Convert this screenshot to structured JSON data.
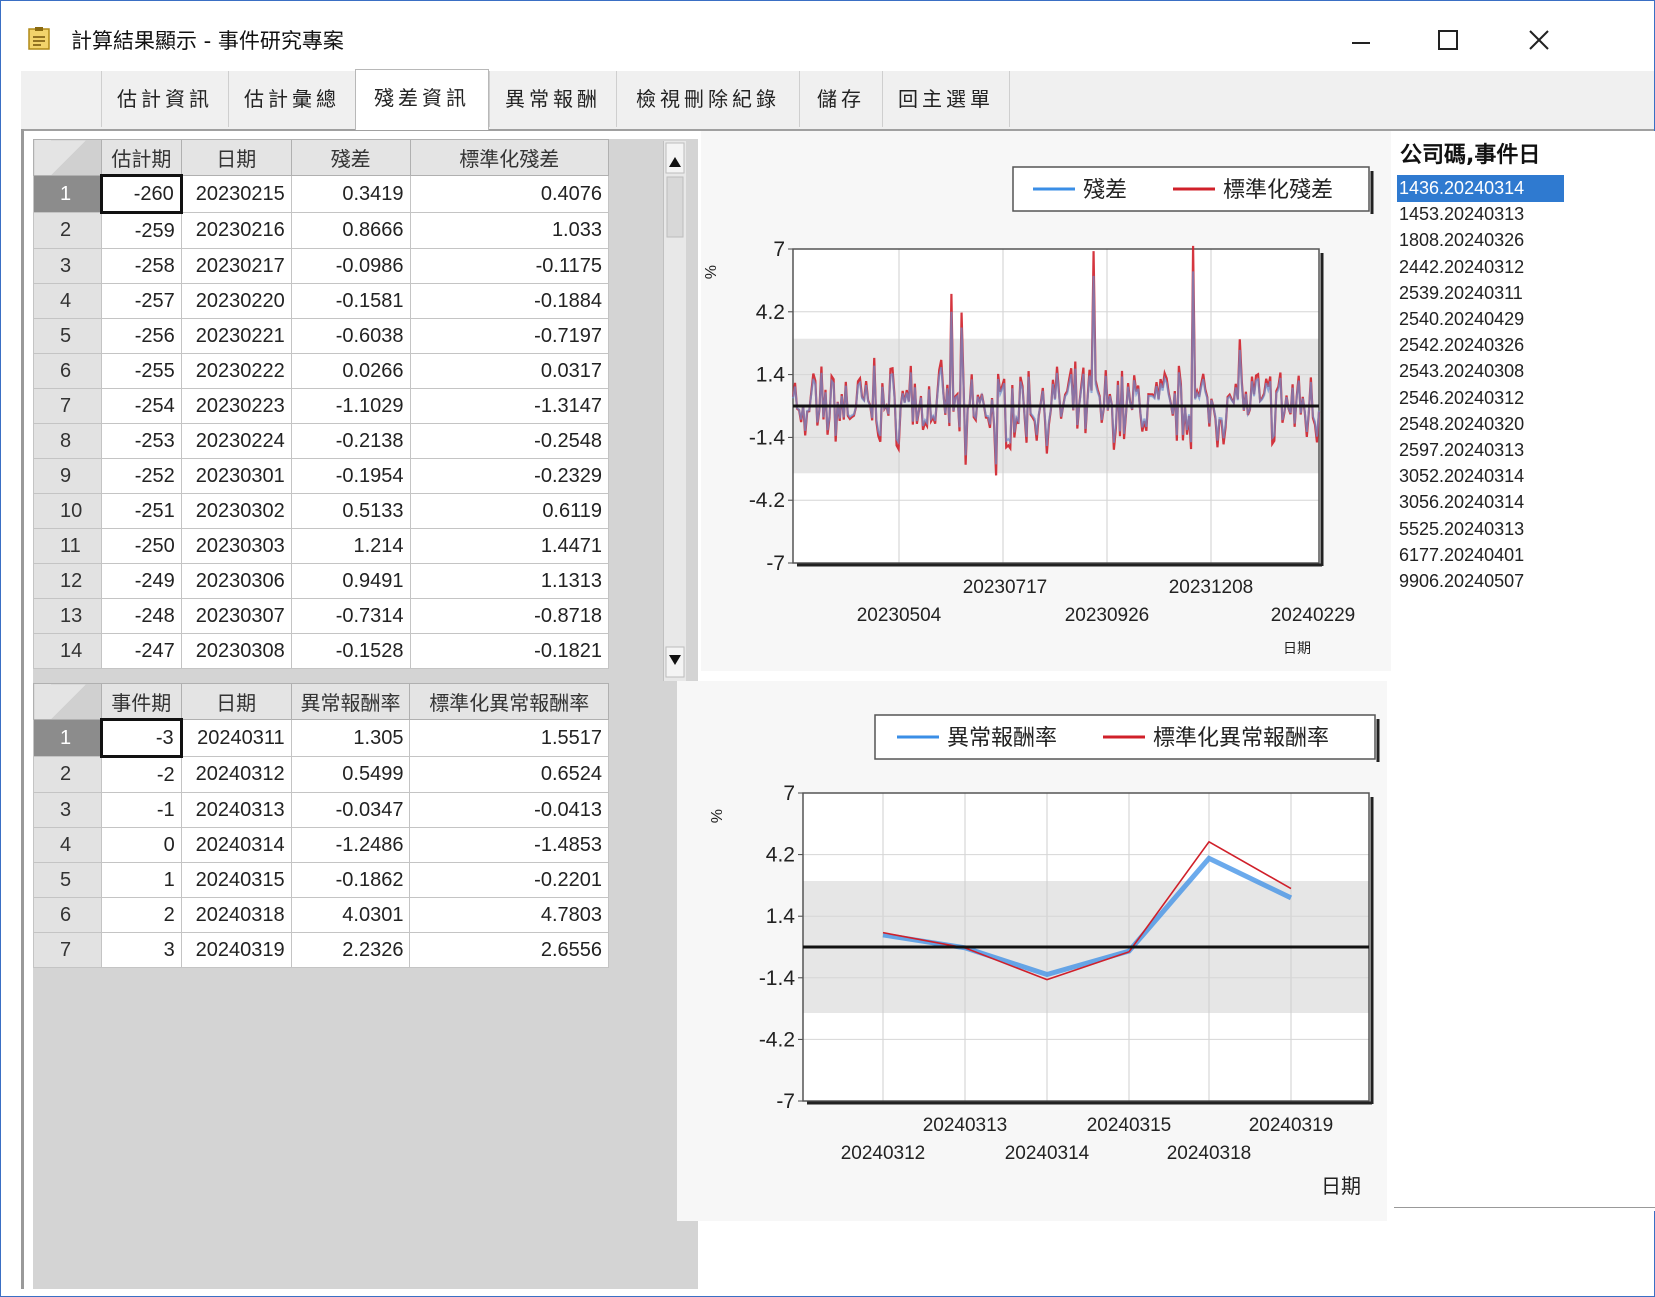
{
  "window": {
    "title": "計算結果顯示 - 事件研究專案",
    "icon": "note-icon",
    "controls": [
      "minimize-icon",
      "maximize-icon",
      "close-icon"
    ]
  },
  "tabs": [
    {
      "label": "估計資訊"
    },
    {
      "label": "估計彙總"
    },
    {
      "label": "殘差資訊",
      "active": true
    },
    {
      "label": "異常報酬"
    },
    {
      "label": "檢視刪除紀錄"
    },
    {
      "label": "儲存"
    },
    {
      "label": "回主選單"
    }
  ],
  "residual_grid": {
    "columns": [
      "估計期",
      "日期",
      "殘差",
      "標準化殘差"
    ],
    "rows": [
      [
        "1",
        "-260",
        "20230215",
        "0.3419",
        "0.4076"
      ],
      [
        "2",
        "-259",
        "20230216",
        "0.8666",
        "1.033"
      ],
      [
        "3",
        "-258",
        "20230217",
        "-0.0986",
        "-0.1175"
      ],
      [
        "4",
        "-257",
        "20230220",
        "-0.1581",
        "-0.1884"
      ],
      [
        "5",
        "-256",
        "20230221",
        "-0.6038",
        "-0.7197"
      ],
      [
        "6",
        "-255",
        "20230222",
        "0.0266",
        "0.0317"
      ],
      [
        "7",
        "-254",
        "20230223",
        "-1.1029",
        "-1.3147"
      ],
      [
        "8",
        "-253",
        "20230224",
        "-0.2138",
        "-0.2548"
      ],
      [
        "9",
        "-252",
        "20230301",
        "-0.1954",
        "-0.2329"
      ],
      [
        "10",
        "-251",
        "20230302",
        "0.5133",
        "0.6119"
      ],
      [
        "11",
        "-250",
        "20230303",
        "1.214",
        "1.4471"
      ],
      [
        "12",
        "-249",
        "20230306",
        "0.9491",
        "1.1313"
      ],
      [
        "13",
        "-248",
        "20230307",
        "-0.7314",
        "-0.8718"
      ],
      [
        "14",
        "-247",
        "20230308",
        "-0.1528",
        "-0.1821"
      ]
    ]
  },
  "abnormal_grid": {
    "columns": [
      "事件期",
      "日期",
      "異常報酬率",
      "標準化異常報酬率"
    ],
    "rows": [
      [
        "1",
        "-3",
        "20240311",
        "1.305",
        "1.5517"
      ],
      [
        "2",
        "-2",
        "20240312",
        "0.5499",
        "0.6524"
      ],
      [
        "3",
        "-1",
        "20240313",
        "-0.0347",
        "-0.0413"
      ],
      [
        "4",
        "0",
        "20240314",
        "-1.2486",
        "-1.4853"
      ],
      [
        "5",
        "1",
        "20240315",
        "-0.1862",
        "-0.2201"
      ],
      [
        "6",
        "2",
        "20240318",
        "4.0301",
        "4.7803"
      ],
      [
        "7",
        "3",
        "20240319",
        "2.2326",
        "2.6556"
      ]
    ]
  },
  "event_list": {
    "header": "公司碼,事件日",
    "selected_index": 0,
    "items": [
      "1436.20240314",
      "1453.20240313",
      "1808.20240326",
      "2442.20240312",
      "2539.20240311",
      "2540.20240429",
      "2542.20240326",
      "2543.20240308",
      "2546.20240312",
      "2548.20240320",
      "2597.20240313",
      "3052.20240314",
      "3056.20240314",
      "5525.20240313",
      "6177.20240401",
      "9906.20240507"
    ]
  },
  "chart_data": [
    {
      "type": "line",
      "ylabel": "%",
      "xlabel": "日期",
      "ylim": [
        -7,
        7
      ],
      "yticks": [
        "7",
        "4.2",
        "1.4",
        "-1.4",
        "-4.2",
        "-7"
      ],
      "xticks_upper": [
        "20230717",
        "20231208"
      ],
      "xticks_lower": [
        "20230504",
        "20230926",
        "20240229"
      ],
      "band": [
        -3,
        3
      ],
      "series": [
        {
          "name": "殘差",
          "color": "#3a8ee6"
        },
        {
          "name": "標準化殘差",
          "color": "#d0202a"
        }
      ],
      "x": [
        "20230215",
        "20230216",
        "20230217",
        "20230220",
        "20230221",
        "20230222",
        "20230223",
        "20230224",
        "20230301",
        "20230302",
        "20230303",
        "20230306",
        "20230307",
        "20230308"
      ],
      "values_residual": [
        0.3419,
        0.8666,
        -0.0986,
        -0.1581,
        -0.6038,
        0.0266,
        -1.1029,
        -0.2138,
        -0.1954,
        0.5133,
        1.214,
        0.9491,
        -0.7314,
        -0.1528
      ],
      "values_standardized": [
        0.4076,
        1.033,
        -0.1175,
        -0.1884,
        -0.7197,
        0.0317,
        -1.3147,
        -0.2548,
        -0.2329,
        0.6119,
        1.4471,
        1.1313,
        -0.8718,
        -0.1821
      ]
    },
    {
      "type": "line",
      "ylabel": "%",
      "xlabel": "日期",
      "ylim": [
        -7,
        7
      ],
      "yticks": [
        "7",
        "4.2",
        "1.4",
        "-1.4",
        "-4.2",
        "-7"
      ],
      "xticks_upper": [
        "20240313",
        "20240315",
        "20240319"
      ],
      "xticks_lower": [
        "20240312",
        "20240314",
        "20240318"
      ],
      "band": [
        -3,
        3
      ],
      "x": [
        "20240311",
        "20240312",
        "20240313",
        "20240314",
        "20240315",
        "20240318",
        "20240319"
      ],
      "series": [
        {
          "name": "異常報酬率",
          "color": "#3a8ee6",
          "values": [
            1.305,
            0.5499,
            -0.0347,
            -1.2486,
            -0.1862,
            4.0301,
            2.2326
          ]
        },
        {
          "name": "標準化異常報酬率",
          "color": "#d0202a",
          "values": [
            1.5517,
            0.6524,
            -0.0413,
            -1.4853,
            -0.2201,
            4.7803,
            2.6556
          ]
        }
      ]
    }
  ]
}
